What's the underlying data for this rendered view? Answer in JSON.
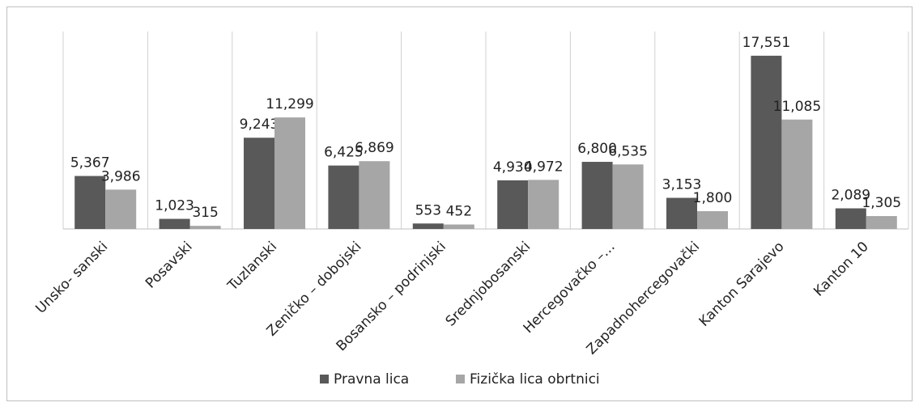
{
  "chart_data": {
    "type": "bar",
    "categories": [
      "Unsko- sanski",
      "Posavski",
      "Tuzlanski",
      "Zeničko – dobojski",
      "Bosansko – podrinjski",
      "Srednjobosanski",
      "Hercegovačko –…",
      "Zapadnohercegovački",
      "Kanton Sarajevo",
      "Kanton 10"
    ],
    "series": [
      {
        "name": "Pravna lica",
        "color": "#595959",
        "values": [
          5367,
          1023,
          9243,
          6425,
          553,
          4930,
          6800,
          3153,
          17551,
          2089
        ],
        "value_labels": [
          "5,367",
          "1,023",
          "9,243",
          "6,425",
          "553",
          "4,930",
          "6,800",
          "3,153",
          "17,551",
          "2,089"
        ]
      },
      {
        "name": "Fizička lica obrtnici",
        "color": "#a6a6a6",
        "values": [
          3986,
          315,
          11299,
          6869,
          452,
          4972,
          6535,
          1800,
          11085,
          1305
        ],
        "value_labels": [
          "3,986",
          "315",
          "11,299",
          "6,869",
          "452",
          "4,972",
          "6,535",
          "1,800",
          "11,085",
          "1,305"
        ]
      }
    ],
    "ylim": [
      0,
      20000
    ],
    "legend": "bottom"
  }
}
